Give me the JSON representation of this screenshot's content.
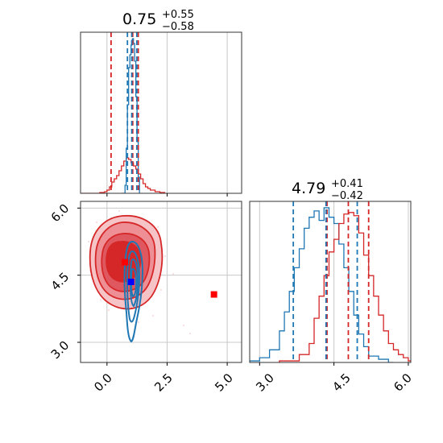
{
  "chart_data": [
    {
      "type": "histogram",
      "panel": "top-left",
      "title": {
        "value": "0.75",
        "plus": "+0.55",
        "minus": "−0.58"
      },
      "xlim": [
        -1.1,
        5.6
      ],
      "grid": true,
      "series": [
        {
          "color": "#d62728",
          "bins": [
            [
              -1.1,
              0
            ],
            [
              -0.3,
              0.005
            ],
            [
              -0.1,
              0.01
            ],
            [
              0.0,
              0.02
            ],
            [
              0.1,
              0.04
            ],
            [
              0.2,
              0.07
            ],
            [
              0.3,
              0.09
            ],
            [
              0.4,
              0.11
            ],
            [
              0.5,
              0.14
            ],
            [
              0.6,
              0.17
            ],
            [
              0.7,
              0.2
            ],
            [
              0.8,
              0.22
            ],
            [
              0.9,
              0.21
            ],
            [
              1.0,
              0.19
            ],
            [
              1.1,
              0.17
            ],
            [
              1.2,
              0.15
            ],
            [
              1.3,
              0.12
            ],
            [
              1.4,
              0.09
            ],
            [
              1.5,
              0.06
            ],
            [
              1.6,
              0.04
            ],
            [
              1.7,
              0.03
            ],
            [
              1.8,
              0.02
            ],
            [
              2.0,
              0.01
            ],
            [
              2.2,
              0.005
            ],
            [
              2.4,
              0
            ]
          ]
        },
        {
          "color": "#1f77b4",
          "bins": [
            [
              0.6,
              0
            ],
            [
              0.75,
              0.05
            ],
            [
              0.8,
              0.28
            ],
            [
              0.85,
              0.55
            ],
            [
              0.9,
              0.78
            ],
            [
              0.95,
              0.86
            ],
            [
              1.0,
              0.92
            ],
            [
              1.03,
              0.95
            ],
            [
              1.06,
              0.96
            ],
            [
              1.1,
              0.93
            ],
            [
              1.15,
              0.82
            ],
            [
              1.2,
              0.6
            ],
            [
              1.25,
              0.32
            ],
            [
              1.3,
              0.1
            ],
            [
              1.35,
              0
            ]
          ]
        }
      ],
      "quantiles": [
        {
          "color": "#d62728",
          "x": [
            0.17,
            1.3
          ]
        },
        {
          "color": "#1f77b4",
          "x": [
            0.85,
            1.24
          ]
        },
        {
          "color": "#d62728",
          "x": [
            1.07
          ]
        },
        {
          "color": "#1f77b4",
          "x": [
            1.03
          ]
        }
      ]
    },
    {
      "type": "contour",
      "panel": "bottom-left",
      "xlim": [
        -1.1,
        5.6
      ],
      "ylim": [
        2.55,
        6.15
      ],
      "xticks": [
        "0.0",
        "2.5",
        "5.0"
      ],
      "yticks": [
        "3.0",
        "4.5",
        "6.0"
      ],
      "grid": true,
      "markers": [
        {
          "x": 0.75,
          "y": 4.79,
          "color": "#ff0000"
        },
        {
          "x": 4.45,
          "y": 4.07,
          "color": "#ff0000"
        },
        {
          "x": 1.0,
          "y": 4.35,
          "color": "#0000ff"
        }
      ]
    },
    {
      "type": "histogram",
      "panel": "bottom-right",
      "title": {
        "value": "4.79",
        "plus": "+0.41",
        "minus": "−0.42"
      },
      "xlim": [
        2.8,
        6.05
      ],
      "xticks": [
        "3.0",
        "4.5",
        "6.0"
      ],
      "grid": true,
      "series": [
        {
          "color": "#1f77b4",
          "bins": [
            [
              2.8,
              0.01
            ],
            [
              3.0,
              0.03
            ],
            [
              3.2,
              0.08
            ],
            [
              3.4,
              0.2
            ],
            [
              3.5,
              0.32
            ],
            [
              3.6,
              0.45
            ],
            [
              3.7,
              0.6
            ],
            [
              3.8,
              0.72
            ],
            [
              3.9,
              0.85
            ],
            [
              4.0,
              0.92
            ],
            [
              4.1,
              0.96
            ],
            [
              4.2,
              0.9
            ],
            [
              4.3,
              0.98
            ],
            [
              4.4,
              0.92
            ],
            [
              4.5,
              0.88
            ],
            [
              4.6,
              0.75
            ],
            [
              4.7,
              0.6
            ],
            [
              4.8,
              0.45
            ],
            [
              4.9,
              0.3
            ],
            [
              5.0,
              0.18
            ],
            [
              5.1,
              0.1
            ],
            [
              5.2,
              0.04
            ],
            [
              5.4,
              0.02
            ],
            [
              5.6,
              0
            ]
          ]
        },
        {
          "color": "#d62728",
          "bins": [
            [
              3.4,
              0.01
            ],
            [
              3.8,
              0.05
            ],
            [
              4.0,
              0.12
            ],
            [
              4.1,
              0.28
            ],
            [
              4.2,
              0.42
            ],
            [
              4.3,
              0.55
            ],
            [
              4.4,
              0.7
            ],
            [
              4.5,
              0.78
            ],
            [
              4.6,
              0.88
            ],
            [
              4.7,
              0.94
            ],
            [
              4.8,
              0.95
            ],
            [
              4.9,
              0.93
            ],
            [
              5.0,
              0.82
            ],
            [
              5.1,
              0.68
            ],
            [
              5.2,
              0.55
            ],
            [
              5.3,
              0.42
            ],
            [
              5.4,
              0.3
            ],
            [
              5.5,
              0.2
            ],
            [
              5.6,
              0.12
            ],
            [
              5.7,
              0.08
            ],
            [
              5.8,
              0.05
            ],
            [
              5.9,
              0.03
            ],
            [
              6.0,
              0.01
            ]
          ]
        }
      ],
      "quantiles": [
        {
          "color": "#1f77b4",
          "x": [
            3.68,
            4.97
          ]
        },
        {
          "color": "#d62728",
          "x": [
            4.36,
            5.2
          ]
        },
        {
          "color": "#d62728",
          "x": [
            4.79
          ]
        },
        {
          "color": "#1f77b4",
          "x": [
            4.34
          ]
        }
      ]
    }
  ]
}
